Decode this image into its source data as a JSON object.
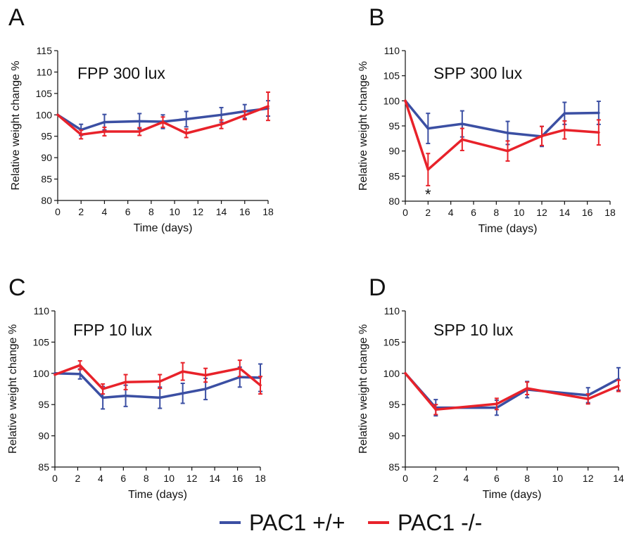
{
  "colors": {
    "pac1_wt": "#3b4fa3",
    "pac1_ko": "#e8222a"
  },
  "legend": [
    {
      "key": "wt",
      "label": "PAC1 +/+",
      "color": "#3b4fa3"
    },
    {
      "key": "ko",
      "label": "PAC1 -/-",
      "color": "#e8222a"
    }
  ],
  "chart_data": [
    {
      "panel": "A",
      "type": "line",
      "title": "FPP 300 lux",
      "xlabel": "Time (days)",
      "ylabel": "Relative weight change %",
      "xlim": [
        0,
        18
      ],
      "ylim": [
        80,
        115
      ],
      "xticks": [
        0,
        2,
        4,
        6,
        8,
        10,
        12,
        14,
        16,
        18
      ],
      "yticks": [
        80,
        85,
        90,
        95,
        100,
        105,
        110,
        115
      ],
      "error_bars": true,
      "series": [
        {
          "key": "wt",
          "color": "#3b4fa3",
          "x": [
            0,
            2,
            4,
            7,
            9,
            11,
            14,
            16,
            18
          ],
          "y": [
            100,
            96.5,
            98.3,
            98.5,
            98.4,
            99,
            100,
            100.8,
            101.5
          ],
          "err": [
            0,
            1.3,
            1.8,
            1.8,
            1.6,
            1.8,
            1.7,
            1.6,
            1.8
          ]
        },
        {
          "key": "ko",
          "color": "#e8222a",
          "x": [
            0,
            2,
            4,
            7,
            9,
            11,
            14,
            16,
            18
          ],
          "y": [
            100,
            95.4,
            96.1,
            96.1,
            98.3,
            95.7,
            97.8,
            99.9,
            102
          ],
          "err": [
            0,
            1.0,
            1.0,
            0.9,
            1.2,
            1.0,
            1.0,
            1.0,
            3.3
          ]
        }
      ]
    },
    {
      "panel": "B",
      "type": "line",
      "title": "SPP 300 lux",
      "xlabel": "Time (days)",
      "ylabel": "Relative weight change %",
      "xlim": [
        0,
        18
      ],
      "ylim": [
        80,
        110
      ],
      "xticks": [
        0,
        2,
        4,
        6,
        8,
        10,
        12,
        14,
        16,
        18
      ],
      "yticks": [
        80,
        85,
        90,
        95,
        100,
        105,
        110
      ],
      "error_bars": true,
      "annotations": [
        {
          "text": "*",
          "x": 2
        }
      ],
      "series": [
        {
          "key": "wt",
          "color": "#3b4fa3",
          "x": [
            0,
            2,
            5,
            9,
            12,
            14,
            17
          ],
          "y": [
            100,
            94.5,
            95.4,
            93.6,
            92.9,
            97.5,
            97.6
          ],
          "err": [
            0,
            3.0,
            2.6,
            2.3,
            2.0,
            2.2,
            2.3
          ]
        },
        {
          "key": "ko",
          "color": "#e8222a",
          "x": [
            0,
            2,
            5,
            9,
            12,
            14,
            17
          ],
          "y": [
            100,
            86.3,
            92.3,
            90,
            93,
            94.2,
            93.7
          ],
          "err": [
            0,
            3.2,
            2.2,
            2.0,
            1.9,
            1.8,
            2.5
          ]
        }
      ]
    },
    {
      "panel": "C",
      "type": "line",
      "title": "FPP 10 lux",
      "xlabel": "Time (days)",
      "ylabel": "Relative weight change %",
      "xlim": [
        0,
        18
      ],
      "ylim": [
        85,
        110
      ],
      "xticks": [
        0,
        2,
        4,
        6,
        8,
        10,
        12,
        14,
        16,
        18
      ],
      "yticks": [
        85,
        90,
        95,
        100,
        105,
        110
      ],
      "error_bars": true,
      "series": [
        {
          "key": "wt",
          "color": "#3b4fa3",
          "x": [
            0,
            2.2,
            4.2,
            6.2,
            9.2,
            11.2,
            13.2,
            16.2,
            18
          ],
          "y": [
            100,
            99.9,
            96.1,
            96.4,
            96.1,
            96.8,
            97.5,
            99.4,
            99.3
          ],
          "err": [
            0,
            0.8,
            1.8,
            1.7,
            1.7,
            1.6,
            1.7,
            1.6,
            2.2
          ]
        },
        {
          "key": "ko",
          "color": "#e8222a",
          "x": [
            0,
            2.2,
            4.2,
            6.2,
            9.2,
            11.2,
            13.2,
            16.2,
            18
          ],
          "y": [
            99.8,
            101.3,
            97.5,
            98.6,
            98.7,
            100.3,
            99.7,
            100.8,
            98.1
          ],
          "err": [
            0,
            0.7,
            0.8,
            1.2,
            1.1,
            1.4,
            1.1,
            1.3,
            1.4
          ]
        }
      ]
    },
    {
      "panel": "D",
      "type": "line",
      "title": "SPP 10 lux",
      "xlabel": "Time (days)",
      "ylabel": "Relative weight change %",
      "xlim": [
        0,
        14
      ],
      "ylim": [
        85,
        110
      ],
      "xticks": [
        0,
        2,
        4,
        6,
        8,
        10,
        12,
        14
      ],
      "yticks": [
        85,
        90,
        95,
        100,
        105,
        110
      ],
      "error_bars": true,
      "series": [
        {
          "key": "wt",
          "color": "#3b4fa3",
          "x": [
            0,
            2,
            6,
            8,
            12,
            14
          ],
          "y": [
            100,
            94.5,
            94.5,
            97.4,
            96.5,
            99.1
          ],
          "err": [
            0,
            1.3,
            1.2,
            1.3,
            1.2,
            1.8
          ]
        },
        {
          "key": "ko",
          "color": "#e8222a",
          "x": [
            0,
            2,
            6,
            8,
            12,
            14
          ],
          "y": [
            100,
            94.2,
            95.1,
            97.6,
            95.9,
            98
          ],
          "err": [
            0,
            0.8,
            0.9,
            1.0,
            0.8,
            0.9
          ]
        }
      ]
    }
  ]
}
